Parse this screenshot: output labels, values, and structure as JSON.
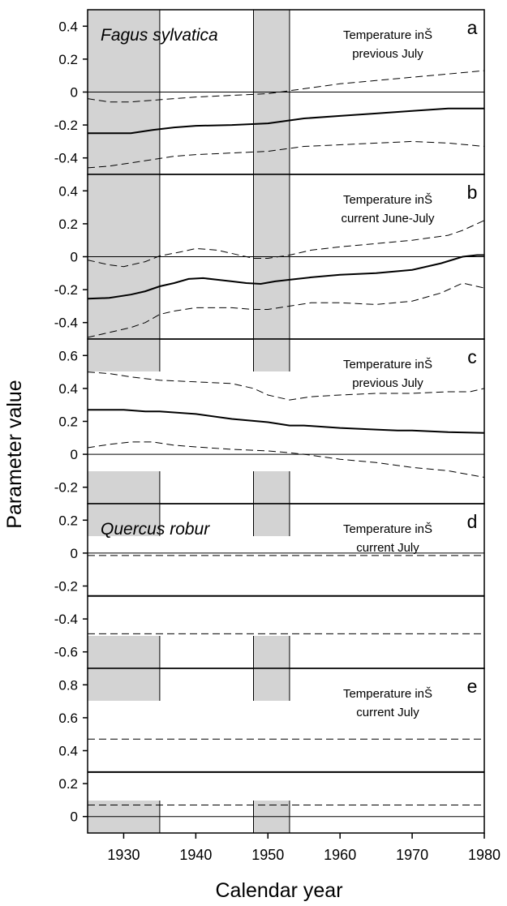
{
  "chart_data": {
    "type": "line",
    "ylabel": "Parameter value",
    "xlabel": "Calendar year",
    "xlim": [
      1925,
      1980
    ],
    "x_ticks": [
      1930,
      1940,
      1950,
      1960,
      1970,
      1980
    ],
    "shaded_periods": [
      [
        1925,
        1935
      ],
      [
        1948,
        1953
      ]
    ],
    "colors": {
      "line": "#000000",
      "shade": "#d3d3d3",
      "zero": "#000000"
    },
    "panels": [
      {
        "letter": "a",
        "species": "Fagus sylvatica",
        "annotation_lines": [
          "Temperature inŠ",
          "previous July"
        ],
        "ylim": [
          -0.5,
          0.5
        ],
        "yticks": [
          -0.4,
          -0.2,
          0,
          0.2,
          0.4
        ],
        "ytick_labels": [
          "-0.4",
          "-0.2",
          "0",
          "0.2",
          "0.4"
        ],
        "shade_to": "upper",
        "series": [
          {
            "style": "dashed",
            "x": [
              1925,
              1928,
              1931,
              1934,
              1937,
              1940,
              1945,
              1950,
              1955,
              1960,
              1965,
              1970,
              1975,
              1980
            ],
            "values": [
              -0.04,
              -0.06,
              -0.06,
              -0.05,
              -0.04,
              -0.03,
              -0.02,
              -0.01,
              0.02,
              0.05,
              0.07,
              0.09,
              0.11,
              0.13
            ]
          },
          {
            "style": "solid",
            "x": [
              1925,
              1928,
              1931,
              1934,
              1937,
              1940,
              1945,
              1950,
              1955,
              1960,
              1965,
              1970,
              1975,
              1980
            ],
            "values": [
              -0.25,
              -0.25,
              -0.25,
              -0.23,
              -0.215,
              -0.205,
              -0.2,
              -0.19,
              -0.16,
              -0.145,
              -0.13,
              -0.115,
              -0.1,
              -0.1
            ]
          },
          {
            "style": "dashed",
            "x": [
              1925,
              1928,
              1931,
              1934,
              1937,
              1940,
              1945,
              1950,
              1955,
              1960,
              1965,
              1970,
              1975,
              1980
            ],
            "values": [
              -0.46,
              -0.45,
              -0.43,
              -0.41,
              -0.39,
              -0.38,
              -0.37,
              -0.36,
              -0.33,
              -0.32,
              -0.31,
              -0.3,
              -0.31,
              -0.33
            ]
          }
        ]
      },
      {
        "letter": "b",
        "annotation_lines": [
          "Temperature inŠ",
          "current June-July"
        ],
        "ylim": [
          -0.5,
          0.5
        ],
        "yticks": [
          -0.4,
          -0.2,
          0,
          0.2,
          0.4
        ],
        "ytick_labels": [
          "-0.4",
          "-0.2",
          "0",
          "0.2",
          "0.4"
        ],
        "shade_to": "upper",
        "series": [
          {
            "style": "dashed",
            "x": [
              1925,
              1928,
              1930,
              1933,
              1935,
              1938,
              1940,
              1943,
              1946,
              1948,
              1950,
              1953,
              1956,
              1960,
              1965,
              1970,
              1975,
              1977,
              1980
            ],
            "values": [
              -0.02,
              -0.05,
              -0.06,
              -0.03,
              0.005,
              0.03,
              0.05,
              0.04,
              0.01,
              -0.01,
              -0.01,
              0.01,
              0.04,
              0.06,
              0.08,
              0.1,
              0.13,
              0.16,
              0.22
            ]
          },
          {
            "style": "solid",
            "x": [
              1925,
              1928,
              1931,
              1933,
              1935,
              1937,
              1939,
              1941,
              1943,
              1945,
              1947,
              1949,
              1951,
              1953,
              1956,
              1960,
              1965,
              1970,
              1974,
              1977,
              1979,
              1980
            ],
            "values": [
              -0.255,
              -0.25,
              -0.23,
              -0.21,
              -0.18,
              -0.16,
              -0.135,
              -0.13,
              -0.14,
              -0.15,
              -0.16,
              -0.165,
              -0.15,
              -0.14,
              -0.125,
              -0.11,
              -0.1,
              -0.08,
              -0.04,
              0.0,
              0.01,
              0.01
            ]
          },
          {
            "style": "dashed",
            "x": [
              1925,
              1928,
              1931,
              1933,
              1935,
              1937,
              1940,
              1945,
              1948,
              1950,
              1953,
              1956,
              1960,
              1965,
              1970,
              1974,
              1977,
              1980
            ],
            "values": [
              -0.49,
              -0.46,
              -0.43,
              -0.4,
              -0.35,
              -0.33,
              -0.31,
              -0.31,
              -0.32,
              -0.32,
              -0.3,
              -0.28,
              -0.28,
              -0.29,
              -0.27,
              -0.22,
              -0.16,
              -0.19
            ]
          }
        ]
      },
      {
        "letter": "c",
        "annotation_lines": [
          "Temperature inŠ",
          "previous July"
        ],
        "ylim": [
          -0.3,
          0.7
        ],
        "yticks": [
          -0.2,
          0,
          0.2,
          0.4,
          0.6
        ],
        "ytick_labels": [
          "-0.2",
          "0",
          "0.2",
          "0.4",
          "0.6"
        ],
        "shade_to": "both",
        "series": [
          {
            "style": "dashed",
            "x": [
              1925,
              1928,
              1931,
              1935,
              1940,
              1945,
              1948,
              1950,
              1953,
              1956,
              1960,
              1965,
              1970,
              1975,
              1978,
              1980
            ],
            "values": [
              0.5,
              0.49,
              0.47,
              0.45,
              0.44,
              0.43,
              0.4,
              0.36,
              0.33,
              0.35,
              0.36,
              0.37,
              0.37,
              0.38,
              0.38,
              0.4
            ]
          },
          {
            "style": "solid",
            "x": [
              1925,
              1930,
              1933,
              1935,
              1940,
              1945,
              1950,
              1953,
              1955,
              1960,
              1965,
              1968,
              1970,
              1975,
              1980
            ],
            "values": [
              0.27,
              0.27,
              0.26,
              0.26,
              0.245,
              0.215,
              0.195,
              0.175,
              0.175,
              0.16,
              0.15,
              0.145,
              0.145,
              0.135,
              0.13
            ]
          },
          {
            "style": "dashed",
            "x": [
              1925,
              1928,
              1931,
              1934,
              1937,
              1940,
              1945,
              1950,
              1953,
              1955,
              1960,
              1965,
              1970,
              1975,
              1980
            ],
            "values": [
              0.04,
              0.06,
              0.075,
              0.075,
              0.055,
              0.045,
              0.03,
              0.02,
              0.01,
              0.0,
              -0.03,
              -0.05,
              -0.08,
              -0.1,
              -0.14
            ]
          }
        ]
      },
      {
        "letter": "d",
        "species": "Quercus robur",
        "annotation_lines": [
          "Temperature inŠ",
          "current July"
        ],
        "ylim": [
          -0.7,
          0.3
        ],
        "yticks": [
          -0.6,
          -0.4,
          -0.2,
          0,
          0.2
        ],
        "ytick_labels": [
          "-0.6",
          "-0.4",
          "-0.2",
          "0",
          "0.2"
        ],
        "shade_to": "both",
        "series": [
          {
            "style": "dashed",
            "x": [
              1925,
              1980
            ],
            "values": [
              -0.015,
              -0.015
            ]
          },
          {
            "style": "solid",
            "x": [
              1925,
              1980
            ],
            "values": [
              -0.26,
              -0.26
            ]
          },
          {
            "style": "dashed",
            "x": [
              1925,
              1980
            ],
            "values": [
              -0.49,
              -0.49
            ]
          }
        ]
      },
      {
        "letter": "e",
        "annotation_lines": [
          "Temperature inŠ",
          "current July"
        ],
        "ylim": [
          -0.1,
          0.9
        ],
        "yticks": [
          0,
          0.2,
          0.4,
          0.6,
          0.8
        ],
        "ytick_labels": [
          "0",
          "0.2",
          "0.4",
          "0.6",
          "0.8"
        ],
        "shade_to": "both",
        "series": [
          {
            "style": "dashed",
            "x": [
              1925,
              1980
            ],
            "values": [
              0.47,
              0.47
            ]
          },
          {
            "style": "solid",
            "x": [
              1925,
              1980
            ],
            "values": [
              0.27,
              0.27
            ]
          },
          {
            "style": "dashed",
            "x": [
              1925,
              1980
            ],
            "values": [
              0.07,
              0.07
            ]
          }
        ]
      }
    ]
  }
}
